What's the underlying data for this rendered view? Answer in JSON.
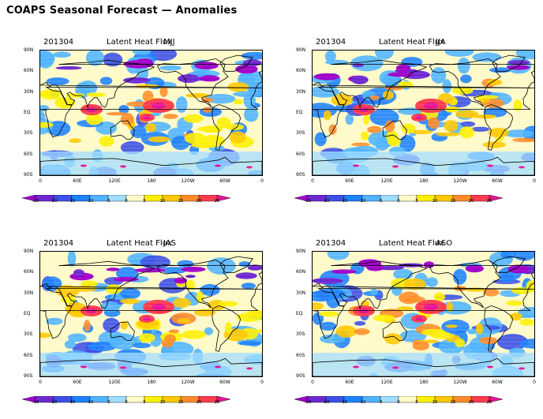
{
  "title": "COAPS Seasonal Forecast — Anomalies",
  "panels": [
    {
      "date": "201304",
      "variable": "Latent Heat Flux",
      "season": "MJJ"
    },
    {
      "date": "201304",
      "variable": "Latent Heat Flux",
      "season": "JJA"
    },
    {
      "date": "201304",
      "variable": "Latent Heat Flux",
      "season": "JAS"
    },
    {
      "date": "201304",
      "variable": "Latent Heat Flux",
      "season": "ASO"
    }
  ],
  "lat_labels": [
    "90N",
    "60N",
    "30N",
    "EQ",
    "30S",
    "60S",
    "90S"
  ],
  "lon_labels": [
    "0",
    "60E",
    "120E",
    "180",
    "120W",
    "60W",
    "0"
  ],
  "colorbar": {
    "levels": [
      "-25",
      "-20",
      "-15",
      "-10",
      "-5",
      "0",
      "5",
      "10",
      "15",
      "20",
      "25"
    ],
    "colors": [
      "#a000c8",
      "#6e28d2",
      "#3c50e6",
      "#1e82ff",
      "#50b4ff",
      "#a0dcff",
      "#fffac8",
      "#fff000",
      "#ffc800",
      "#ff8c28",
      "#ff3c50",
      "#e61496"
    ]
  }
}
